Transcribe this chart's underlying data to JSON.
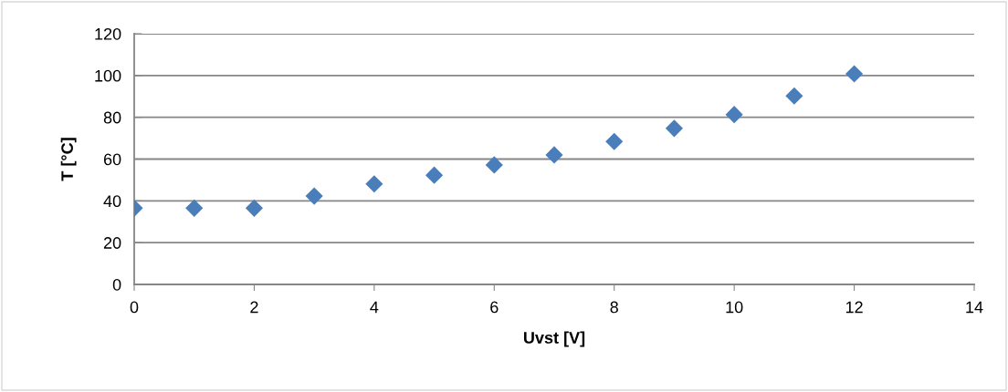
{
  "chart_data": {
    "type": "scatter",
    "xlabel": "Uvst [V]",
    "ylabel": "T [°C]",
    "x": [
      0,
      1,
      2,
      3,
      4,
      5,
      6,
      7,
      8,
      9,
      10,
      11,
      12
    ],
    "values": [
      36.5,
      36.5,
      36.5,
      42.3,
      48.1,
      52.3,
      57.2,
      62.0,
      68.4,
      74.7,
      81.3,
      90.2,
      100.8
    ],
    "color": "#4a7ebb",
    "marker": "diamond",
    "xlim": [
      0,
      14
    ],
    "xticks": [
      0,
      2,
      4,
      6,
      8,
      10,
      12,
      14
    ],
    "ylim": [
      0,
      120
    ],
    "yticks": [
      0,
      20,
      40,
      60,
      80,
      100,
      120
    ],
    "grid": "y",
    "legend": false
  }
}
